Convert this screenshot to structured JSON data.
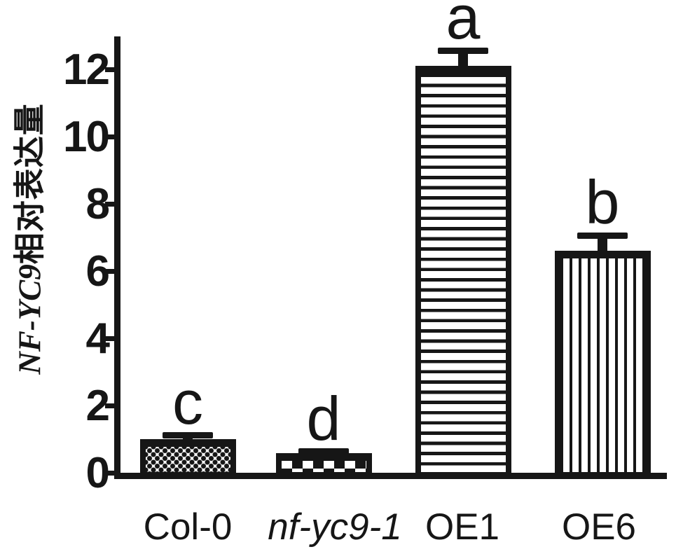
{
  "figure": {
    "background": "#ffffff",
    "ink_color": "#161616"
  },
  "chart_data": {
    "type": "bar",
    "title": "",
    "xlabel": "",
    "ylabel": "NF-YC9相对表达量",
    "ylabel_gene": "NF-YC9",
    "ylabel_cn": "相对表达量",
    "ylim": [
      0,
      13
    ],
    "yticks": [
      0,
      2,
      4,
      6,
      8,
      10,
      12
    ],
    "grid": false,
    "legend": "none",
    "categories": [
      "Col-0",
      "nf-yc9-1",
      "OE1",
      "OE6"
    ],
    "values": [
      1.0,
      0.58,
      12.1,
      6.6
    ],
    "errors_upper": [
      0.2,
      0.14,
      0.55,
      0.55
    ],
    "significance_letters": [
      "c",
      "d",
      "a",
      "b"
    ],
    "bar_fill_patterns": [
      "fine-checker",
      "coarse-checker",
      "horizontal-stripes",
      "vertical-stripes"
    ],
    "italic_categories": [
      false,
      true,
      false,
      false
    ]
  }
}
